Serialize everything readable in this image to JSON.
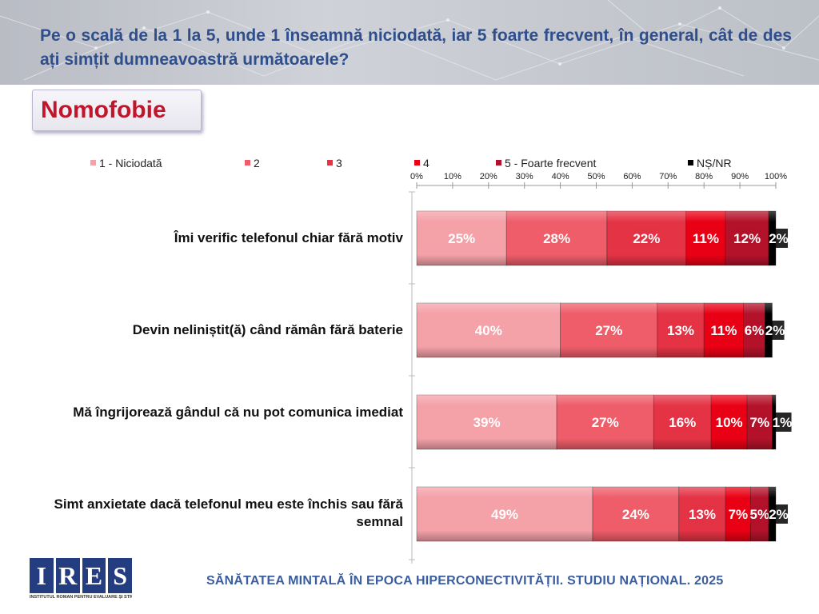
{
  "header": {
    "question": "Pe o scală de la 1 la 5, unde 1 înseamnă niciodată, iar 5 foarte frecvent, în general, cât de des ați simțit dumneavoastră următoarele?"
  },
  "topic": "Nomofobie",
  "footer": "SĂNĂTATEA MINTALĂ ÎN EPOCA HIPERCONECTIVITĂȚII. STUDIU NAȚIONAL. 2025",
  "logo": {
    "text": "IRES",
    "subtitle": "INSTITUTUL ROMÂN PENTRU EVALUARE ȘI STRATEGIE"
  },
  "chart_data": {
    "type": "bar",
    "orientation": "horizontal",
    "stacked": true,
    "categories": [
      "Îmi verific telefonul chiar fără motiv",
      "Devin neliniștit(ă) când rămân fără baterie",
      "Mă îngrijorează gândul că nu pot comunica imediat",
      "Simt anxietate dacă telefonul meu este închis sau fără semnal"
    ],
    "series": [
      {
        "name": "1 - Niciodată",
        "values": [
          25,
          40,
          39,
          49
        ],
        "color": "#f4a1a8"
      },
      {
        "name": "2",
        "values": [
          28,
          27,
          27,
          24
        ],
        "color": "#ee5d69"
      },
      {
        "name": "3",
        "values": [
          22,
          13,
          16,
          13
        ],
        "color": "#e43345"
      },
      {
        "name": "4",
        "values": [
          11,
          11,
          10,
          7
        ],
        "color": "#ea0014"
      },
      {
        "name": "5 - Foarte frecvent",
        "values": [
          12,
          6,
          7,
          5
        ],
        "color": "#b3122a"
      },
      {
        "name": "NȘ/NR",
        "values": [
          2,
          2,
          1,
          2
        ],
        "color": "#000000"
      }
    ],
    "xlim": [
      0,
      100
    ],
    "x_ticks": [
      "0%",
      "10%",
      "20%",
      "30%",
      "40%",
      "50%",
      "60%",
      "70%",
      "80%",
      "90%",
      "100%"
    ],
    "value_suffix": "%",
    "legend_position": "top"
  }
}
